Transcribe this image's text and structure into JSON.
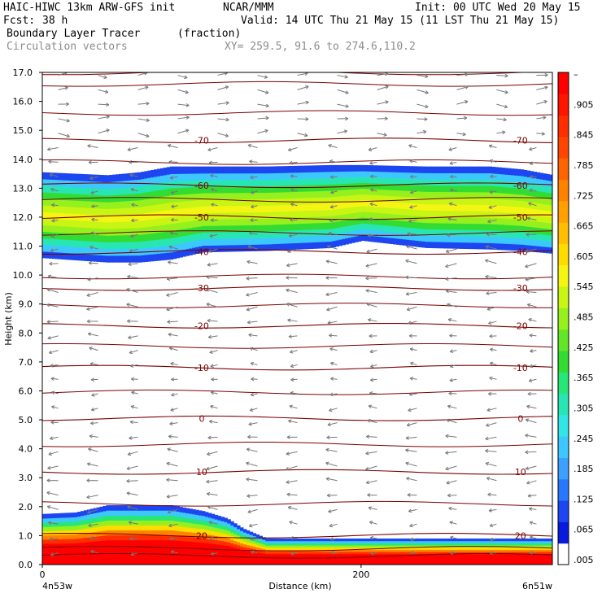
{
  "header": {
    "model": "HAIC-HIWC 13km ARW-GFS init",
    "org": "NCAR/MMM",
    "init": "Init: 00 UTC Wed 20 May 15",
    "fcst_label": "Fcst:",
    "fcst_value": "38 h",
    "valid": "Valid: 14 UTC Thu 21 May 15 (11 LST Thu 21 May 15)",
    "field": "Boundary Layer Tracer",
    "field_units": "(fraction)",
    "overlay": "Circulation vectors",
    "xy": "XY= 259.5, 91.6 to 274.6,110.2"
  },
  "colors": {
    "contour": "#7a0000",
    "vector": "#777777",
    "scale": [
      "#ffffff",
      "#0a1adc",
      "#1e46f0",
      "#2878ff",
      "#3ca0ff",
      "#3cc8ff",
      "#32e6e6",
      "#28e6b4",
      "#28e678",
      "#32dc32",
      "#64e628",
      "#96f01e",
      "#c8f514",
      "#f5f514",
      "#ffdc00",
      "#ffbe00",
      "#ffa000",
      "#ff8200",
      "#ff6400",
      "#ff4600",
      "#ff2d00",
      "#ff1400",
      "#ff0000"
    ]
  },
  "chart_data": {
    "type": "heatmap",
    "ylabel": "Height (km)",
    "xlabel": "Distance (km)",
    "ylim": [
      0,
      17
    ],
    "xlim": [
      0,
      320
    ],
    "y_ticks": [
      "0.0",
      "1.0",
      "2.0",
      "3.0",
      "4.0",
      "5.0",
      "6.0",
      "7.0",
      "8.0",
      "9.0",
      "10.0",
      "11.0",
      "12.0",
      "13.0",
      "14.0",
      "15.0",
      "16.0",
      "17.0"
    ],
    "x_ticks": [
      {
        "value": 0,
        "label": "0"
      },
      {
        "value": 200,
        "label": "200"
      }
    ],
    "x_endpoints": {
      "left": "4n53w",
      "right": "6n51w"
    },
    "colorbar_labels": [
      ".005",
      ".065",
      ".125",
      ".185",
      ".245",
      ".305",
      ".365",
      ".425",
      ".485",
      ".545",
      ".605",
      ".665",
      ".725",
      ".785",
      ".845",
      ".905",
      "–"
    ],
    "upper_layer": {
      "x": [
        0,
        40,
        60,
        80,
        100,
        140,
        180,
        200,
        240,
        280,
        300,
        320
      ],
      "bottom": [
        10.6,
        10.45,
        10.45,
        10.55,
        10.8,
        10.85,
        10.95,
        11.2,
        10.95,
        10.9,
        10.85,
        10.75
      ],
      "top": [
        13.55,
        13.45,
        13.55,
        13.75,
        13.75,
        13.75,
        13.8,
        13.8,
        13.75,
        13.75,
        13.65,
        13.45
      ],
      "core": 0.57
    },
    "lower_layer": {
      "x": [
        0,
        20,
        40,
        60,
        80,
        100,
        115,
        125,
        140,
        200,
        260,
        320
      ],
      "top": [
        1.75,
        1.8,
        2.05,
        2.05,
        2.05,
        1.85,
        1.6,
        1.25,
        0.9,
        0.9,
        0.9,
        0.9
      ],
      "core": 1.0
    },
    "isotherms": [
      {
        "label": "-70",
        "y": 14.65
      },
      {
        "label": "-60",
        "y": 13.1
      },
      {
        "label": "-50",
        "y": 12.0
      },
      {
        "label": "-40",
        "y": 10.8
      },
      {
        "label": "-30",
        "y": 9.55
      },
      {
        "label": "-20",
        "y": 8.25
      },
      {
        "label": "-10",
        "y": 6.8
      },
      {
        "label": "0",
        "y": 5.05
      },
      {
        "label": "10",
        "y": 3.2
      },
      {
        "label": "20",
        "y": 1.0
      }
    ],
    "unlabeled_contour_levels": [
      0.3,
      0.55,
      2.1,
      4.15,
      5.95,
      7.55,
      8.95,
      9.95,
      11.45,
      12.6,
      13.9,
      15.6,
      16.6,
      17.0
    ],
    "wind_u_upper": 1.0,
    "wind_u_lower": -1.0
  }
}
